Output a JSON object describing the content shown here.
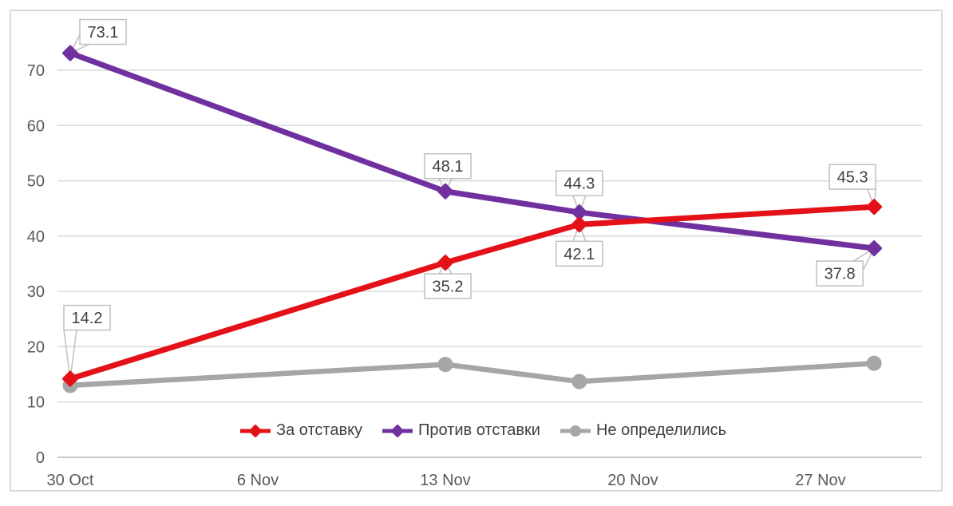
{
  "chart_data": {
    "type": "line",
    "title": "",
    "x_axis": {
      "tick_labels": [
        "30 Oct",
        "6 Nov",
        "13 Nov",
        "20 Nov",
        "27 Nov"
      ],
      "tick_days": [
        0,
        7,
        14,
        21,
        28
      ]
    },
    "y_axis": {
      "ticks": [
        0,
        10,
        20,
        30,
        40,
        50,
        60,
        70
      ],
      "range": [
        0,
        77.5
      ]
    },
    "grid": true,
    "legend_position": "bottom-center",
    "series": [
      {
        "name": "За отставку",
        "color": "#E41118",
        "marker": "diamond",
        "x_days": [
          0,
          14,
          19,
          30
        ],
        "values": [
          14.2,
          35.2,
          42.1,
          45.3
        ],
        "point_labels": [
          "14.2",
          "35.2",
          "42.1",
          "45.3"
        ]
      },
      {
        "name": "Против отставки",
        "color": "#7030A0",
        "marker": "diamond",
        "x_days": [
          0,
          14,
          19,
          30
        ],
        "values": [
          73.1,
          48.1,
          44.3,
          37.8
        ],
        "point_labels": [
          "73.1",
          "48.1",
          "44.3",
          "37.8"
        ]
      },
      {
        "name": "Не определились",
        "color": "#A6A6A6",
        "marker": "circle",
        "x_days": [
          0,
          14,
          19,
          30
        ],
        "values": [
          13,
          16.8,
          13.7,
          17
        ],
        "point_labels": []
      }
    ],
    "colors": {
      "gridline": "#D9D9D9",
      "axis_line": "#C8C8C8",
      "frame_border": "#D9D9D9",
      "tick_text": "#595959",
      "data_label_text": "#404040",
      "data_label_border": "#BFBFBF",
      "background": "#FFFFFF"
    }
  }
}
